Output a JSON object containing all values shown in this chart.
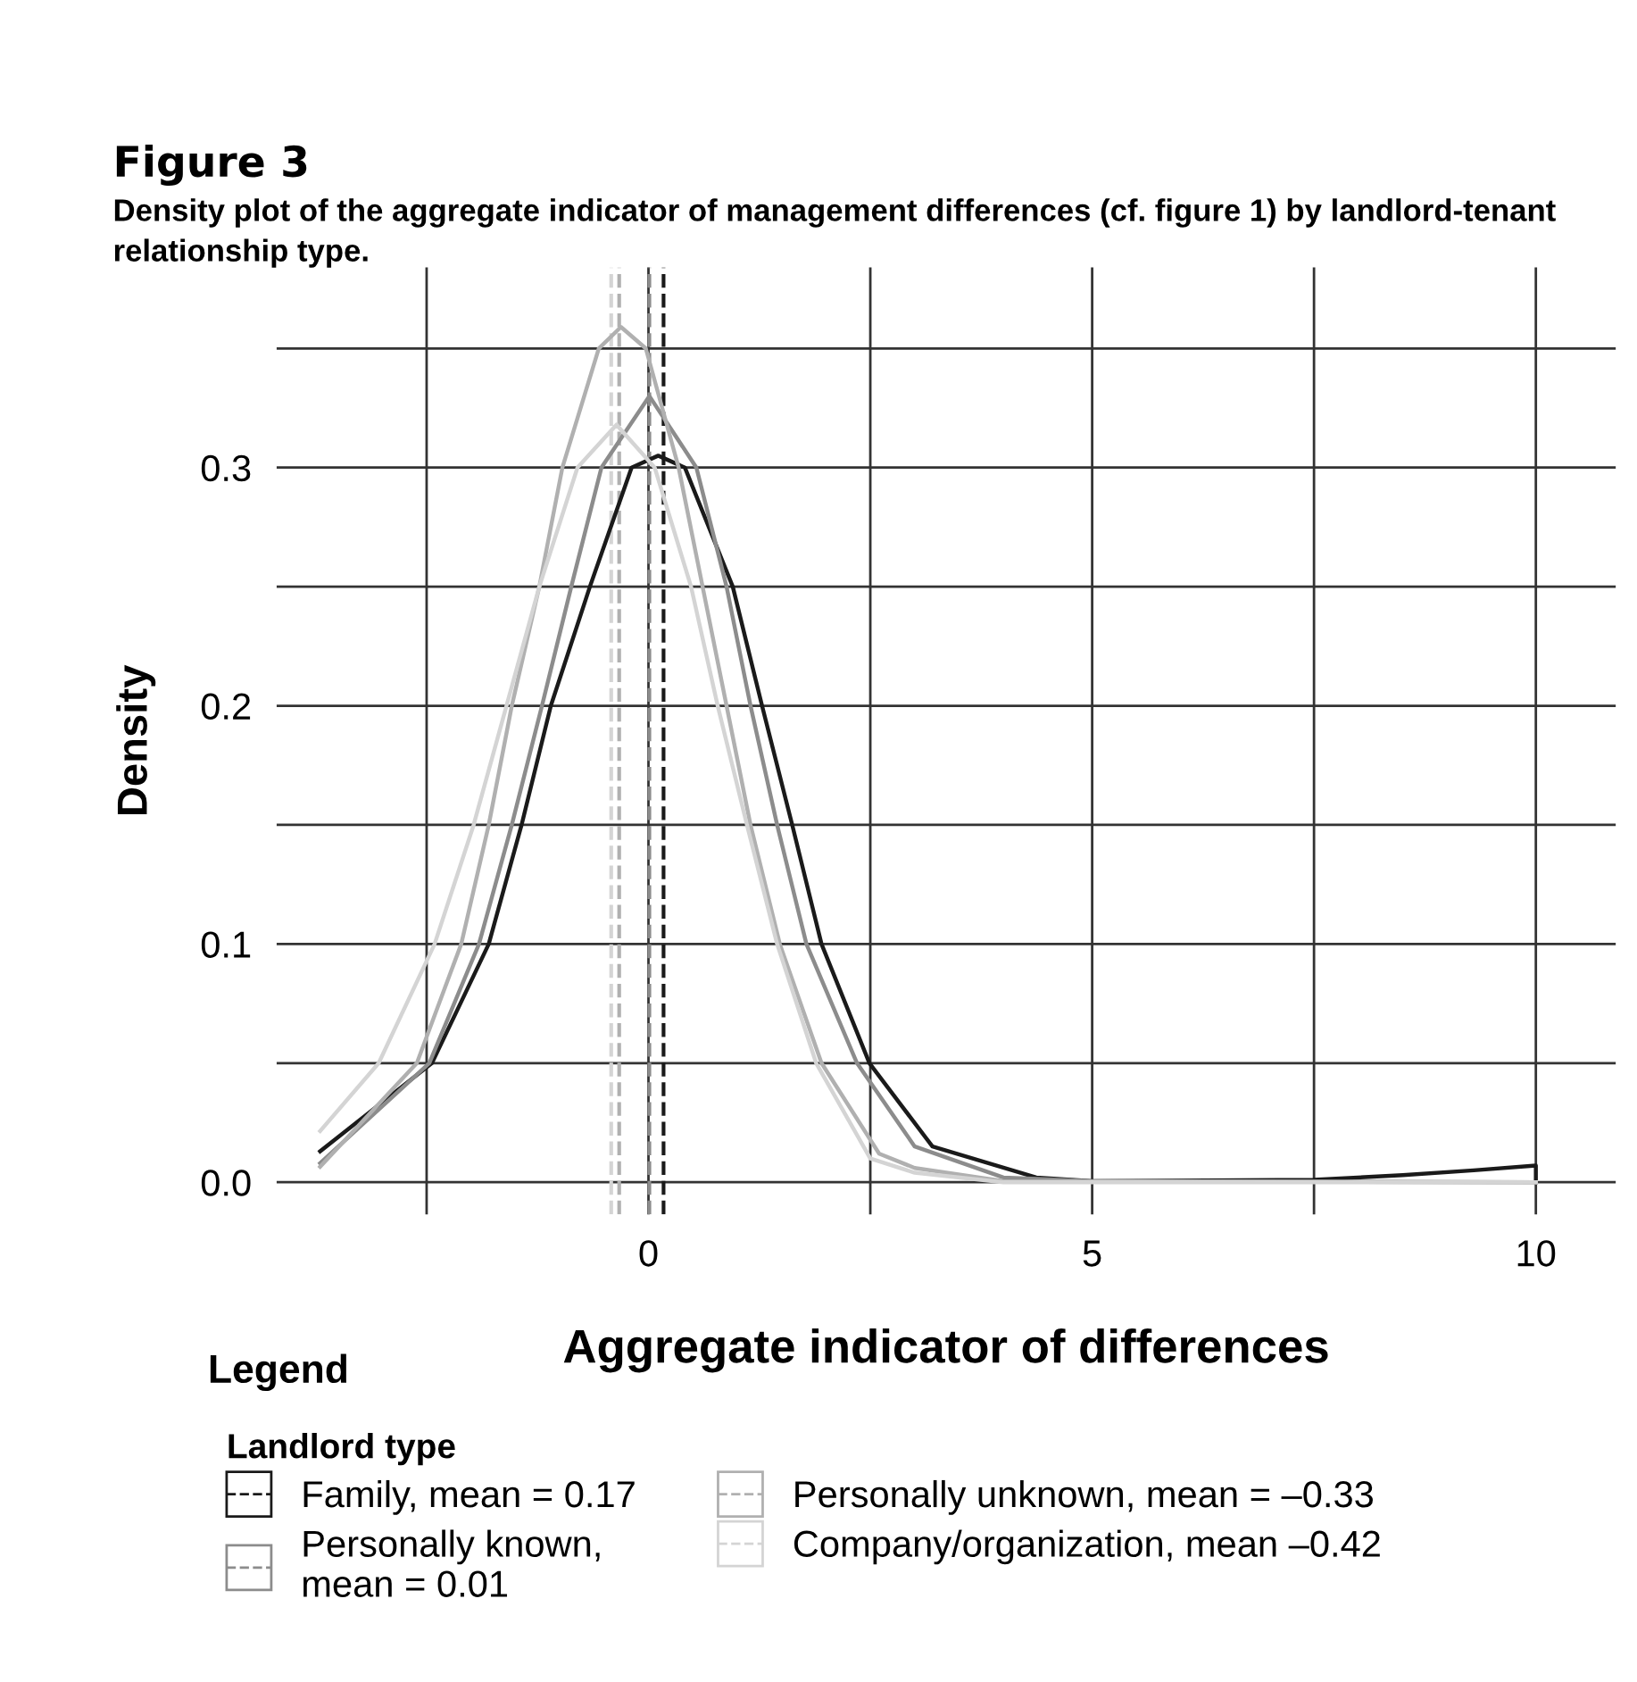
{
  "chart_data": {
    "type": "line",
    "title": "Figure 3",
    "subtitle": "Density plot of the aggregate indicator of management differences (cf. figure 1) by landlord-tenant relationship type.",
    "xlabel": "Aggregate indicator of differences",
    "ylabel": "Density",
    "legend_title": "Landlord type",
    "annotations": [
      "Legend"
    ],
    "series": [
      {
        "name": "Family, mean = 0.17",
        "color": "#1a1a1a",
        "x": [
          -3.7,
          -2.44,
          -1.8,
          -1.43,
          -1.1,
          -0.66,
          -0.19,
          0.11,
          0.41,
          0.95,
          1.28,
          1.62,
          1.95,
          2.49,
          3.2,
          4.37,
          5,
          7.5,
          8.5,
          9.3,
          10,
          10
        ],
        "values": [
          0.013,
          0.05,
          0.1,
          0.15,
          0.2,
          0.25,
          0.3,
          0.305,
          0.3,
          0.25,
          0.2,
          0.15,
          0.1,
          0.05,
          0.015,
          0.002,
          0.0005,
          0.001,
          0.003,
          0.005,
          0.007,
          0
        ]
      },
      {
        "name": "Personally known,\nmean = 0.01",
        "color": "#8c8c8c",
        "x": [
          -3.7,
          -2.47,
          -1.91,
          -1.54,
          -1.2,
          -0.87,
          -0.53,
          0.01,
          0.54,
          0.88,
          1.15,
          1.45,
          1.78,
          2.35,
          3.0,
          4.0,
          5,
          10
        ],
        "values": [
          0.008,
          0.05,
          0.1,
          0.15,
          0.2,
          0.25,
          0.3,
          0.33,
          0.3,
          0.25,
          0.2,
          0.15,
          0.1,
          0.05,
          0.015,
          0.002,
          0.0005,
          0
        ]
      },
      {
        "name": "Personally unknown, mean = –0.33",
        "color": "#b0b0b0",
        "x": [
          -3.7,
          -2.61,
          -2.11,
          -1.8,
          -1.54,
          -1.23,
          -0.97,
          -0.56,
          -0.31,
          -0.03,
          0.34,
          0.61,
          0.88,
          1.15,
          1.48,
          1.95,
          2.6,
          3.0,
          4.0,
          10
        ],
        "values": [
          0.0065,
          0.05,
          0.1,
          0.15,
          0.2,
          0.25,
          0.3,
          0.35,
          0.359,
          0.35,
          0.3,
          0.25,
          0.2,
          0.15,
          0.1,
          0.05,
          0.012,
          0.006,
          0.0005,
          0
        ]
      },
      {
        "name": "Company/organization, mean –0.42",
        "color": "#d4d4d4",
        "x": [
          -3.7,
          -3.04,
          -2.41,
          -1.97,
          -1.6,
          -1.23,
          -0.8,
          -0.36,
          0.07,
          0.48,
          0.78,
          1.11,
          1.45,
          1.89,
          2.5,
          3.0,
          4.0,
          10
        ],
        "values": [
          0.0215,
          0.05,
          0.1,
          0.15,
          0.2,
          0.25,
          0.3,
          0.318,
          0.3,
          0.25,
          0.2,
          0.15,
          0.1,
          0.05,
          0.01,
          0.004,
          0,
          0
        ]
      }
    ],
    "ref_lines": [
      {
        "axis": "x",
        "value": 0.17,
        "label": null,
        "color": "#1a1a1a",
        "line_style": "dashed"
      },
      {
        "axis": "x",
        "value": 0.01,
        "label": null,
        "color": "#8c8c8c",
        "line_style": "dashed"
      },
      {
        "axis": "x",
        "value": -0.33,
        "label": null,
        "color": "#b0b0b0",
        "line_style": "dashed"
      },
      {
        "axis": "x",
        "value": -0.42,
        "label": null,
        "color": "#d4d4d4",
        "line_style": "dashed"
      }
    ],
    "xlim": [
      -4.19,
      10.9
    ],
    "ylim": [
      -0.0135,
      0.384
    ],
    "xticks": [
      {
        "value": -2.5,
        "label": null
      },
      0,
      {
        "value": 2.5,
        "label": null
      },
      5,
      {
        "value": 7.5,
        "label": null
      },
      10
    ],
    "yticks": [
      {
        "value": 0,
        "label": "0.0"
      },
      {
        "value": 0.05,
        "label": null
      },
      {
        "value": 0.1,
        "label": "0.1"
      },
      {
        "value": 0.15,
        "label": null
      },
      {
        "value": 0.2,
        "label": "0.2"
      },
      {
        "value": 0.25,
        "label": null
      },
      {
        "value": 0.3,
        "label": "0.3"
      },
      {
        "value": 0.35,
        "label": null
      }
    ],
    "grid": true,
    "legend": "bottom",
    "marker": "none",
    "line_style": "solid"
  }
}
